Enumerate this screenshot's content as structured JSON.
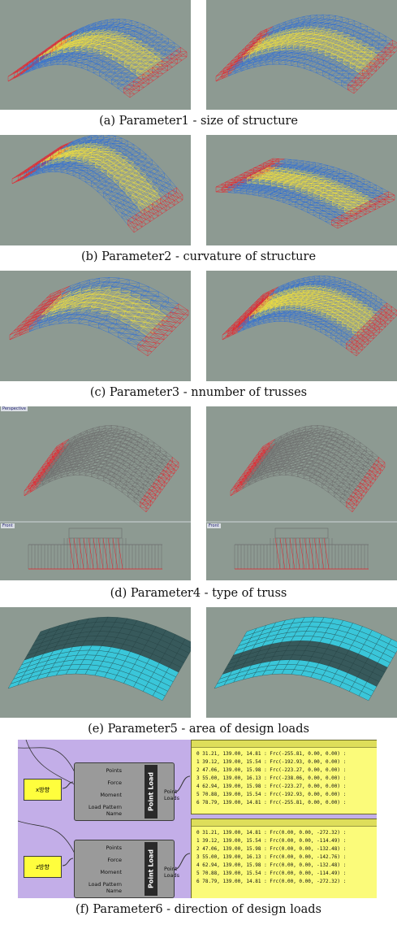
{
  "captions": {
    "a": "(a) Parameter1 - size of structure",
    "b": "(b) Parameter2 - curvature of structure",
    "c": "(c) Parameter3 - nnumber of trusses",
    "d": "(d) Parameter4 - type of truss",
    "e": "(e) Parameter5 - area of design loads",
    "f": "(f) Parameter6 - direction of design loads"
  },
  "viewport_labels": {
    "perspective": "Perspective",
    "front": "Front"
  },
  "colors": {
    "background": "#8d9a92",
    "truss_red": "#e8202a",
    "truss_blue": "#2f6fd6",
    "truss_yellow": "#f3e23a",
    "truss_grey": "#6b6b6b",
    "load_cyan": "#3ac6d9",
    "gh_canvas": "#c3aee8",
    "gh_param": "#fffe3d",
    "gh_panel": "#fbfb7a"
  },
  "grasshopper": {
    "blocks": [
      {
        "param_label": "x방향",
        "inputs": [
          "Points",
          "Force",
          "Moment",
          "Load Pattern Name"
        ],
        "component": "Point Load",
        "output": "Point Loads",
        "lines": [
          "0 31.21, 139.00, 14.81 : Frc(-255.81, 0.00, 0.00) :",
          "1 39.12, 139.00, 15.54 : Frc(-192.93, 0.00, 0.00) :",
          "2 47.06, 139.00, 15.98 : Frc(-223.27, 0.00, 0.00) :",
          "3 55.00, 139.00, 16.13 : Frc(-238.06, 0.00, 0.00) :",
          "4 62.94, 139.00, 15.98 : Frc(-223.27, 0.00, 0.00) :",
          "5 70.88, 139.00, 15.54 : Frc(-192.93, 0.00, 0.00) :",
          "6 78.79, 139.00, 14.81 : Frc(-255.81, 0.00, 0.00) :"
        ]
      },
      {
        "param_label": "z방향",
        "inputs": [
          "Points",
          "Force",
          "Moment",
          "Load Pattern Name"
        ],
        "component": "Point Load",
        "output": "Point Loads",
        "lines": [
          "0 31.21, 139.00, 14.81 : Frc(0.00, 0.00, -272.32) :",
          "1 39.12, 139.00, 15.54 : Frc(0.00, 0.00, -114.49) :",
          "2 47.06, 139.00, 15.98 : Frc(0.00, 0.00, -132.48) :",
          "3 55.00, 139.00, 16.13 : Frc(0.00, 0.00, -142.76) :",
          "4 62.94, 139.00, 15.98 : Frc(0.00, 0.00, -132.48) :",
          "5 70.88, 139.00, 15.54 : Frc(0.00, 0.00, -114.49) :",
          "6 78.79, 139.00, 14.81 : Frc(0.00, 0.00, -272.32) :"
        ]
      }
    ]
  }
}
